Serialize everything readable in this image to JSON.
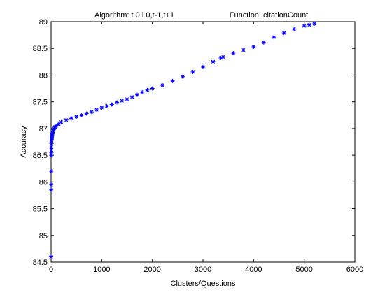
{
  "chart_data": {
    "type": "scatter",
    "title_left": "Algorithm: t 0,l 0,t-1,t+1",
    "title_right": "Function: citationCount",
    "xlabel": "Clusters/Questions",
    "ylabel": "Accuracy",
    "xlim": [
      0,
      6000
    ],
    "ylim": [
      84.5,
      89
    ],
    "xticks": [
      0,
      1000,
      2000,
      3000,
      4000,
      5000,
      6000
    ],
    "yticks": [
      84.5,
      85,
      85.5,
      86,
      86.5,
      87,
      87.5,
      88,
      88.5,
      89
    ],
    "grid": false,
    "legend": "none",
    "marker": "asterisk",
    "color": "#0000ff",
    "series": [
      {
        "x": [
          1,
          2,
          3,
          4,
          5,
          6,
          7,
          8,
          9,
          10,
          12,
          14,
          16,
          18,
          20,
          25,
          30,
          40,
          50,
          60,
          80,
          100,
          150,
          200,
          300,
          400,
          500,
          600,
          700,
          800,
          900,
          1000,
          1100,
          1200,
          1300,
          1400,
          1500,
          1600,
          1700,
          1800,
          1900,
          2000,
          2200,
          2400,
          2600,
          2800,
          3000,
          3200,
          3350,
          3400,
          3600,
          3800,
          4000,
          4200,
          4400,
          4600,
          4800,
          5000,
          5100,
          5200
        ],
        "y": [
          84.6,
          85.85,
          85.95,
          86.2,
          86.5,
          86.55,
          86.6,
          86.65,
          86.72,
          86.78,
          86.8,
          86.82,
          86.84,
          86.86,
          86.88,
          86.9,
          86.92,
          86.95,
          86.98,
          87.0,
          87.03,
          87.05,
          87.08,
          87.12,
          87.16,
          87.19,
          87.22,
          87.25,
          87.28,
          87.31,
          87.35,
          87.39,
          87.42,
          87.45,
          87.49,
          87.52,
          87.55,
          87.59,
          87.63,
          87.68,
          87.72,
          87.75,
          87.81,
          87.89,
          87.97,
          88.06,
          88.15,
          88.25,
          88.32,
          88.34,
          88.41,
          88.47,
          88.53,
          88.61,
          88.71,
          88.79,
          88.86,
          88.92,
          88.94,
          88.96
        ]
      }
    ]
  }
}
